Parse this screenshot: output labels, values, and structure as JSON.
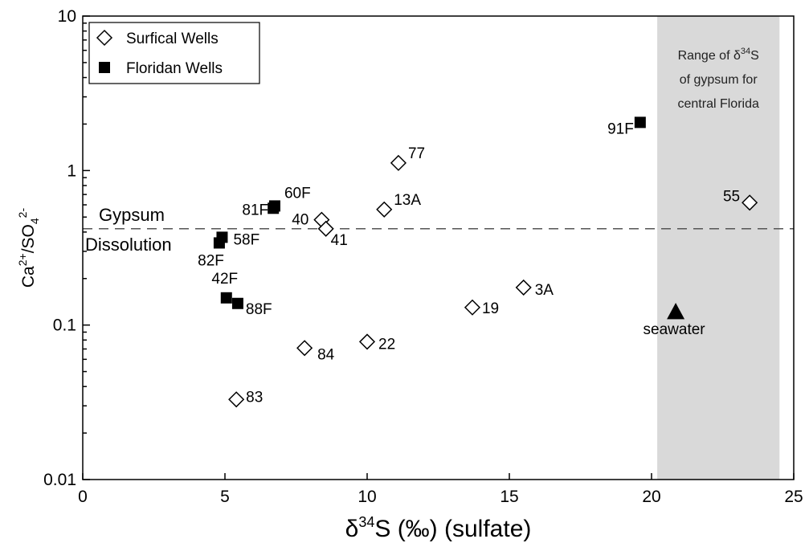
{
  "chart_data": {
    "type": "scatter",
    "xlabel": "δ34S (‰) (sulfate)",
    "ylabel": "Ca2+/SO42-",
    "xlim": [
      0,
      25
    ],
    "ylim": [
      0.01,
      10
    ],
    "yscale": "log",
    "xticks": [
      "0",
      "5",
      "10",
      "15",
      "20",
      "25"
    ],
    "yticks": [
      "0.01",
      "0.1",
      "1",
      "10"
    ],
    "grid": false,
    "legend_position": "top-left",
    "series": [
      {
        "name": "Surfical Wells",
        "marker": "open-diamond",
        "points": [
          {
            "label": "77",
            "x": 11.1,
            "y": 1.12
          },
          {
            "label": "13A",
            "x": 10.6,
            "y": 0.56
          },
          {
            "label": "40",
            "x": 8.4,
            "y": 0.48
          },
          {
            "label": "41",
            "x": 8.55,
            "y": 0.42
          },
          {
            "label": "55",
            "x": 23.45,
            "y": 0.62
          },
          {
            "label": "3A",
            "x": 15.5,
            "y": 0.175
          },
          {
            "label": "19",
            "x": 13.7,
            "y": 0.13
          },
          {
            "label": "84",
            "x": 7.8,
            "y": 0.071
          },
          {
            "label": "22",
            "x": 10.0,
            "y": 0.078
          },
          {
            "label": "83",
            "x": 5.4,
            "y": 0.033
          }
        ]
      },
      {
        "name": "Floridan Wells",
        "marker": "filled-square",
        "points": [
          {
            "label": "91F",
            "x": 19.6,
            "y": 2.05
          },
          {
            "label": "60F",
            "x": 6.75,
            "y": 0.59
          },
          {
            "label": "81F",
            "x": 6.7,
            "y": 0.57
          },
          {
            "label": "58F",
            "x": 4.9,
            "y": 0.37
          },
          {
            "label": "82F",
            "x": 4.8,
            "y": 0.34
          },
          {
            "label": "42F",
            "x": 5.05,
            "y": 0.15
          },
          {
            "label": "88F",
            "x": 5.45,
            "y": 0.138
          }
        ]
      },
      {
        "name": "seawater",
        "marker": "filled-triangle",
        "points": [
          {
            "label": "seawater",
            "x": 20.85,
            "y": 0.122
          }
        ]
      }
    ],
    "reference_line": {
      "y": 0.42,
      "style": "dashed",
      "label_above": "Gypsum",
      "label_below": "Dissolution"
    },
    "shaded_region": {
      "x": [
        20.2,
        24.5
      ],
      "color": "#d9d9d9",
      "text": [
        "Range of δ34S",
        "of gypsum for",
        "central Florida"
      ]
    }
  },
  "colors": {
    "shade": "#d9d9d9",
    "marker": "#000000",
    "background": "#ffffff"
  }
}
